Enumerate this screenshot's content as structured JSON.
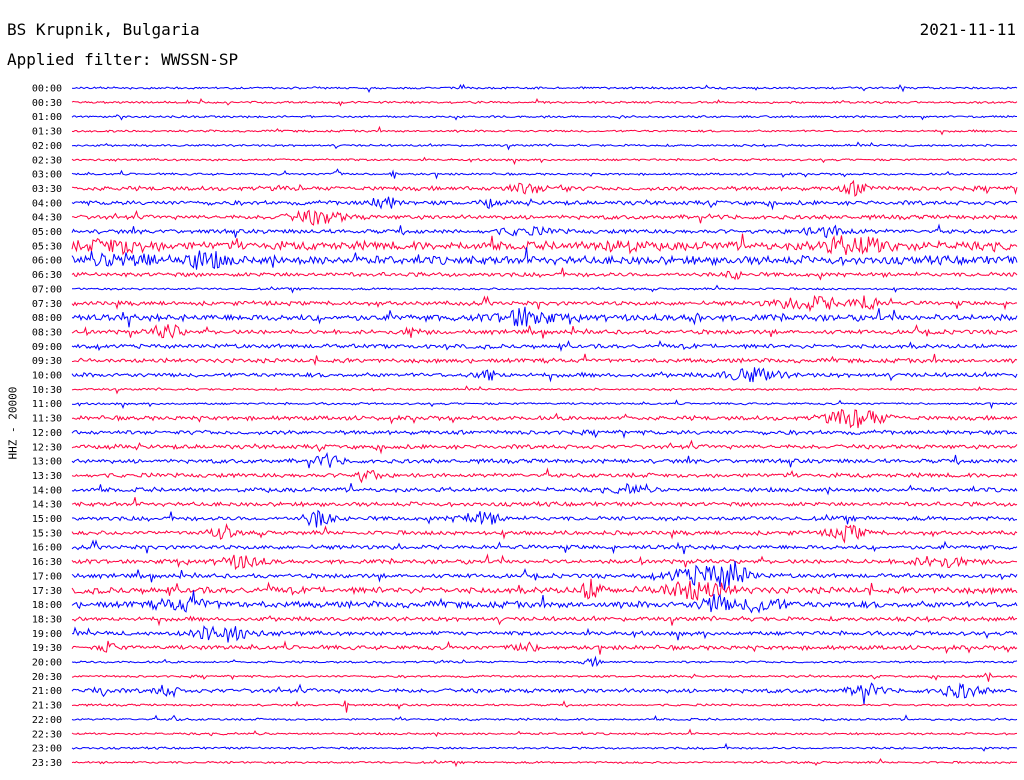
{
  "header": {
    "station": "BS Krupnik, Bulgaria",
    "date": "2021-11-11",
    "filter": "Applied filter: WWSSN-SP"
  },
  "chart_data": {
    "type": "line",
    "ylabel": "HHZ - 20000",
    "trace_colors": [
      "#0000ff",
      "#ff0040"
    ],
    "row_labels": [
      "00:00",
      "00:30",
      "01:00",
      "01:30",
      "02:00",
      "02:30",
      "03:00",
      "03:30",
      "04:00",
      "04:30",
      "05:00",
      "05:30",
      "06:00",
      "06:30",
      "07:00",
      "07:30",
      "08:00",
      "08:30",
      "09:00",
      "09:30",
      "10:00",
      "10:30",
      "11:00",
      "11:30",
      "12:00",
      "12:30",
      "13:00",
      "13:30",
      "14:00",
      "14:30",
      "15:00",
      "15:30",
      "16:00",
      "16:30",
      "17:00",
      "17:30",
      "18:00",
      "18:30",
      "19:00",
      "19:30",
      "20:00",
      "20:30",
      "21:00",
      "21:30",
      "22:00",
      "22:30",
      "23:00",
      "23:30"
    ],
    "noise_level": [
      1,
      1,
      1,
      1,
      1,
      1,
      1,
      2,
      2,
      2,
      2,
      4,
      4,
      2,
      1,
      2,
      3,
      2,
      2,
      2,
      2,
      1,
      1,
      2,
      2,
      2,
      2,
      2,
      2,
      2,
      2,
      2,
      2,
      2,
      2,
      3,
      3,
      2,
      2,
      2,
      1,
      1,
      2,
      1,
      1,
      1,
      1,
      1
    ],
    "bursts": [
      {
        "row": 6,
        "pos": 0.28,
        "w": 0.005,
        "a": 5
      },
      {
        "row": 6,
        "pos": 0.34,
        "w": 0.005,
        "a": 5
      },
      {
        "row": 7,
        "pos": 0.48,
        "w": 0.03,
        "a": 4
      },
      {
        "row": 7,
        "pos": 0.52,
        "w": 0.006,
        "a": 6
      },
      {
        "row": 7,
        "pos": 0.83,
        "w": 0.02,
        "a": 6
      },
      {
        "row": 8,
        "pos": 0.33,
        "w": 0.02,
        "a": 6
      },
      {
        "row": 8,
        "pos": 0.44,
        "w": 0.01,
        "a": 4
      },
      {
        "row": 9,
        "pos": 0.26,
        "w": 0.04,
        "a": 6
      },
      {
        "row": 10,
        "pos": 0.48,
        "w": 0.04,
        "a": 3
      },
      {
        "row": 10,
        "pos": 0.8,
        "w": 0.04,
        "a": 4
      },
      {
        "row": 11,
        "pos": 0.05,
        "w": 0.05,
        "a": 5
      },
      {
        "row": 11,
        "pos": 0.58,
        "w": 0.02,
        "a": 7
      },
      {
        "row": 11,
        "pos": 0.83,
        "w": 0.05,
        "a": 7
      },
      {
        "row": 12,
        "pos": 0.06,
        "w": 0.04,
        "a": 6
      },
      {
        "row": 12,
        "pos": 0.14,
        "w": 0.03,
        "a": 7
      },
      {
        "row": 13,
        "pos": 0.7,
        "w": 0.01,
        "a": 4
      },
      {
        "row": 15,
        "pos": 0.78,
        "w": 0.05,
        "a": 6
      },
      {
        "row": 15,
        "pos": 0.84,
        "w": 0.015,
        "a": 9
      },
      {
        "row": 16,
        "pos": 0.48,
        "w": 0.035,
        "a": 9
      },
      {
        "row": 16,
        "pos": 0.66,
        "w": 0.01,
        "a": 4
      },
      {
        "row": 17,
        "pos": 0.1,
        "w": 0.02,
        "a": 8
      },
      {
        "row": 17,
        "pos": 0.36,
        "w": 0.01,
        "a": 6
      },
      {
        "row": 20,
        "pos": 0.44,
        "w": 0.015,
        "a": 6
      },
      {
        "row": 20,
        "pos": 0.72,
        "w": 0.04,
        "a": 6
      },
      {
        "row": 23,
        "pos": 0.83,
        "w": 0.04,
        "a": 9
      },
      {
        "row": 26,
        "pos": 0.27,
        "w": 0.02,
        "a": 6
      },
      {
        "row": 27,
        "pos": 0.31,
        "w": 0.02,
        "a": 5
      },
      {
        "row": 28,
        "pos": 0.59,
        "w": 0.02,
        "a": 4
      },
      {
        "row": 30,
        "pos": 0.26,
        "w": 0.02,
        "a": 8
      },
      {
        "row": 30,
        "pos": 0.43,
        "w": 0.03,
        "a": 6
      },
      {
        "row": 31,
        "pos": 0.16,
        "w": 0.015,
        "a": 7
      },
      {
        "row": 31,
        "pos": 0.82,
        "w": 0.025,
        "a": 7
      },
      {
        "row": 33,
        "pos": 0.18,
        "w": 0.03,
        "a": 6
      },
      {
        "row": 33,
        "pos": 0.92,
        "w": 0.04,
        "a": 5
      },
      {
        "row": 34,
        "pos": 0.67,
        "w": 0.05,
        "a": 9
      },
      {
        "row": 34,
        "pos": 0.7,
        "w": 0.02,
        "a": 10
      },
      {
        "row": 35,
        "pos": 0.55,
        "w": 0.015,
        "a": 10
      },
      {
        "row": 35,
        "pos": 0.66,
        "w": 0.05,
        "a": 8
      },
      {
        "row": 36,
        "pos": 0.12,
        "w": 0.04,
        "a": 5
      },
      {
        "row": 36,
        "pos": 0.68,
        "w": 0.02,
        "a": 9
      },
      {
        "row": 36,
        "pos": 0.73,
        "w": 0.03,
        "a": 7
      },
      {
        "row": 38,
        "pos": 0.16,
        "w": 0.04,
        "a": 8
      },
      {
        "row": 39,
        "pos": 0.04,
        "w": 0.01,
        "a": 6
      },
      {
        "row": 39,
        "pos": 0.48,
        "w": 0.02,
        "a": 4
      },
      {
        "row": 40,
        "pos": 0.55,
        "w": 0.01,
        "a": 5
      },
      {
        "row": 41,
        "pos": 0.97,
        "w": 0.005,
        "a": 7
      },
      {
        "row": 42,
        "pos": 0.03,
        "w": 0.01,
        "a": 6
      },
      {
        "row": 42,
        "pos": 0.1,
        "w": 0.015,
        "a": 6
      },
      {
        "row": 42,
        "pos": 0.84,
        "w": 0.02,
        "a": 8
      },
      {
        "row": 42,
        "pos": 0.94,
        "w": 0.03,
        "a": 6
      },
      {
        "row": 43,
        "pos": 0.29,
        "w": 0.003,
        "a": 12
      },
      {
        "row": 44,
        "pos": 0.11,
        "w": 0.004,
        "a": 7
      }
    ]
  }
}
